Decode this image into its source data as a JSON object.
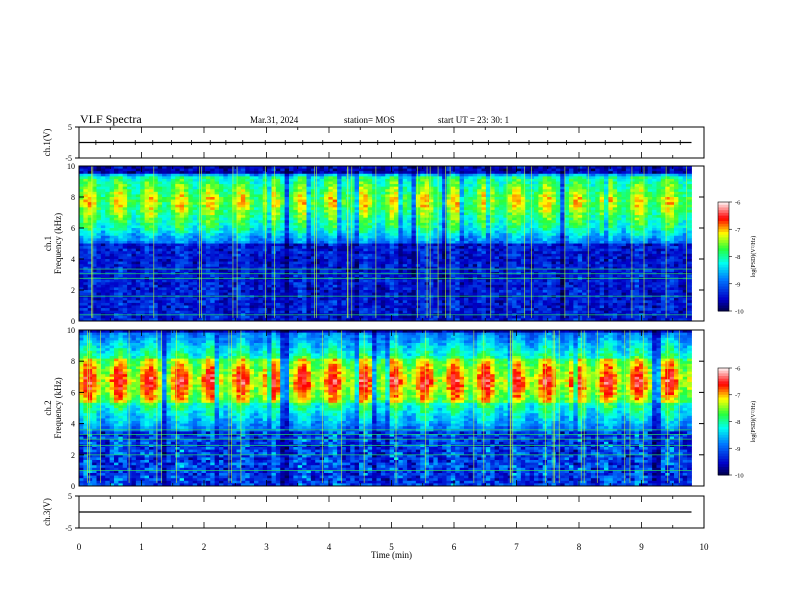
{
  "header": {
    "title": "VLF Spectra",
    "date": "Mar.31, 2024",
    "station": "station= MOS",
    "start": "start  UT =   23: 30: 1"
  },
  "chart_data": [
    {
      "type": "line",
      "name": "ch1-waveform",
      "ylabel": "ch.1(V)",
      "ylim": [
        -5,
        5
      ],
      "yticks": [
        "5",
        "-5"
      ],
      "x_range_min": [
        0,
        9.8
      ],
      "baseline": 0,
      "spikes_min": [
        0.27,
        0.55,
        0.9,
        1.18,
        1.48,
        1.8,
        2.1,
        2.35,
        2.62,
        2.98,
        3.3,
        3.58,
        3.9,
        4.2,
        4.5,
        4.78,
        5.05,
        5.38,
        5.7,
        6.0,
        6.3,
        6.55,
        6.88,
        7.2,
        7.5,
        7.8,
        8.1,
        8.42,
        8.7,
        9.0,
        9.3,
        9.62
      ]
    },
    {
      "type": "heatmap",
      "name": "ch1-spectrogram",
      "ylabel": "ch.1\nFrequency (kHz)",
      "xlim": [
        0,
        10
      ],
      "ylim": [
        0,
        10
      ],
      "yticks": [
        0,
        2,
        4,
        6,
        8,
        10
      ],
      "data_end_min": 9.8,
      "band_kHz": [
        5,
        9.5
      ],
      "core_kHz": [
        6.2,
        9.2
      ],
      "peak_kHz": 7.7,
      "lines_kHz": [
        0.4,
        1.6,
        2.75,
        3.05,
        3.35
      ],
      "colorbar": {
        "label": "log(PSD)(V²/Hz)",
        "ticks": [
          "-6",
          "-7",
          "-8",
          "-9",
          "-10"
        ],
        "range": [
          -10,
          -6
        ]
      }
    },
    {
      "type": "heatmap",
      "name": "ch2-spectrogram",
      "ylabel": "ch.2\nFrequency (kHz)",
      "xlim": [
        0,
        10
      ],
      "ylim": [
        0,
        10
      ],
      "yticks": [
        0,
        2,
        4,
        6,
        8,
        10
      ],
      "data_end_min": 9.8,
      "band_kHz": [
        3.5,
        9.8
      ],
      "core_kHz": [
        5.3,
        8.2
      ],
      "peak_kHz": 6.7,
      "lines_kHz": [
        1.0,
        2.0,
        2.6,
        3.0,
        3.3,
        3.6
      ],
      "colorbar": {
        "label": "log(PSD)(V²/Hz)",
        "ticks": [
          "-6",
          "-7",
          "-8",
          "-9",
          "-10"
        ],
        "range": [
          -10,
          -6
        ]
      }
    },
    {
      "type": "line",
      "name": "ch3-waveform",
      "ylabel": "ch.3(V)",
      "ylim": [
        -5,
        5
      ],
      "yticks": [
        "5",
        "-5"
      ],
      "x_range_min": [
        0,
        9.8
      ],
      "baseline": 0
    }
  ],
  "xaxis": {
    "label": "Time  (min)",
    "ticks": [
      "0",
      "1",
      "2",
      "3",
      "4",
      "5",
      "6",
      "7",
      "8",
      "9",
      "10"
    ],
    "range": [
      0,
      10
    ]
  },
  "colors": {
    "cmap": [
      "#000080",
      "#0000ff",
      "#00ffff",
      "#ffff00",
      "#ff0000",
      "#ffffff"
    ]
  }
}
